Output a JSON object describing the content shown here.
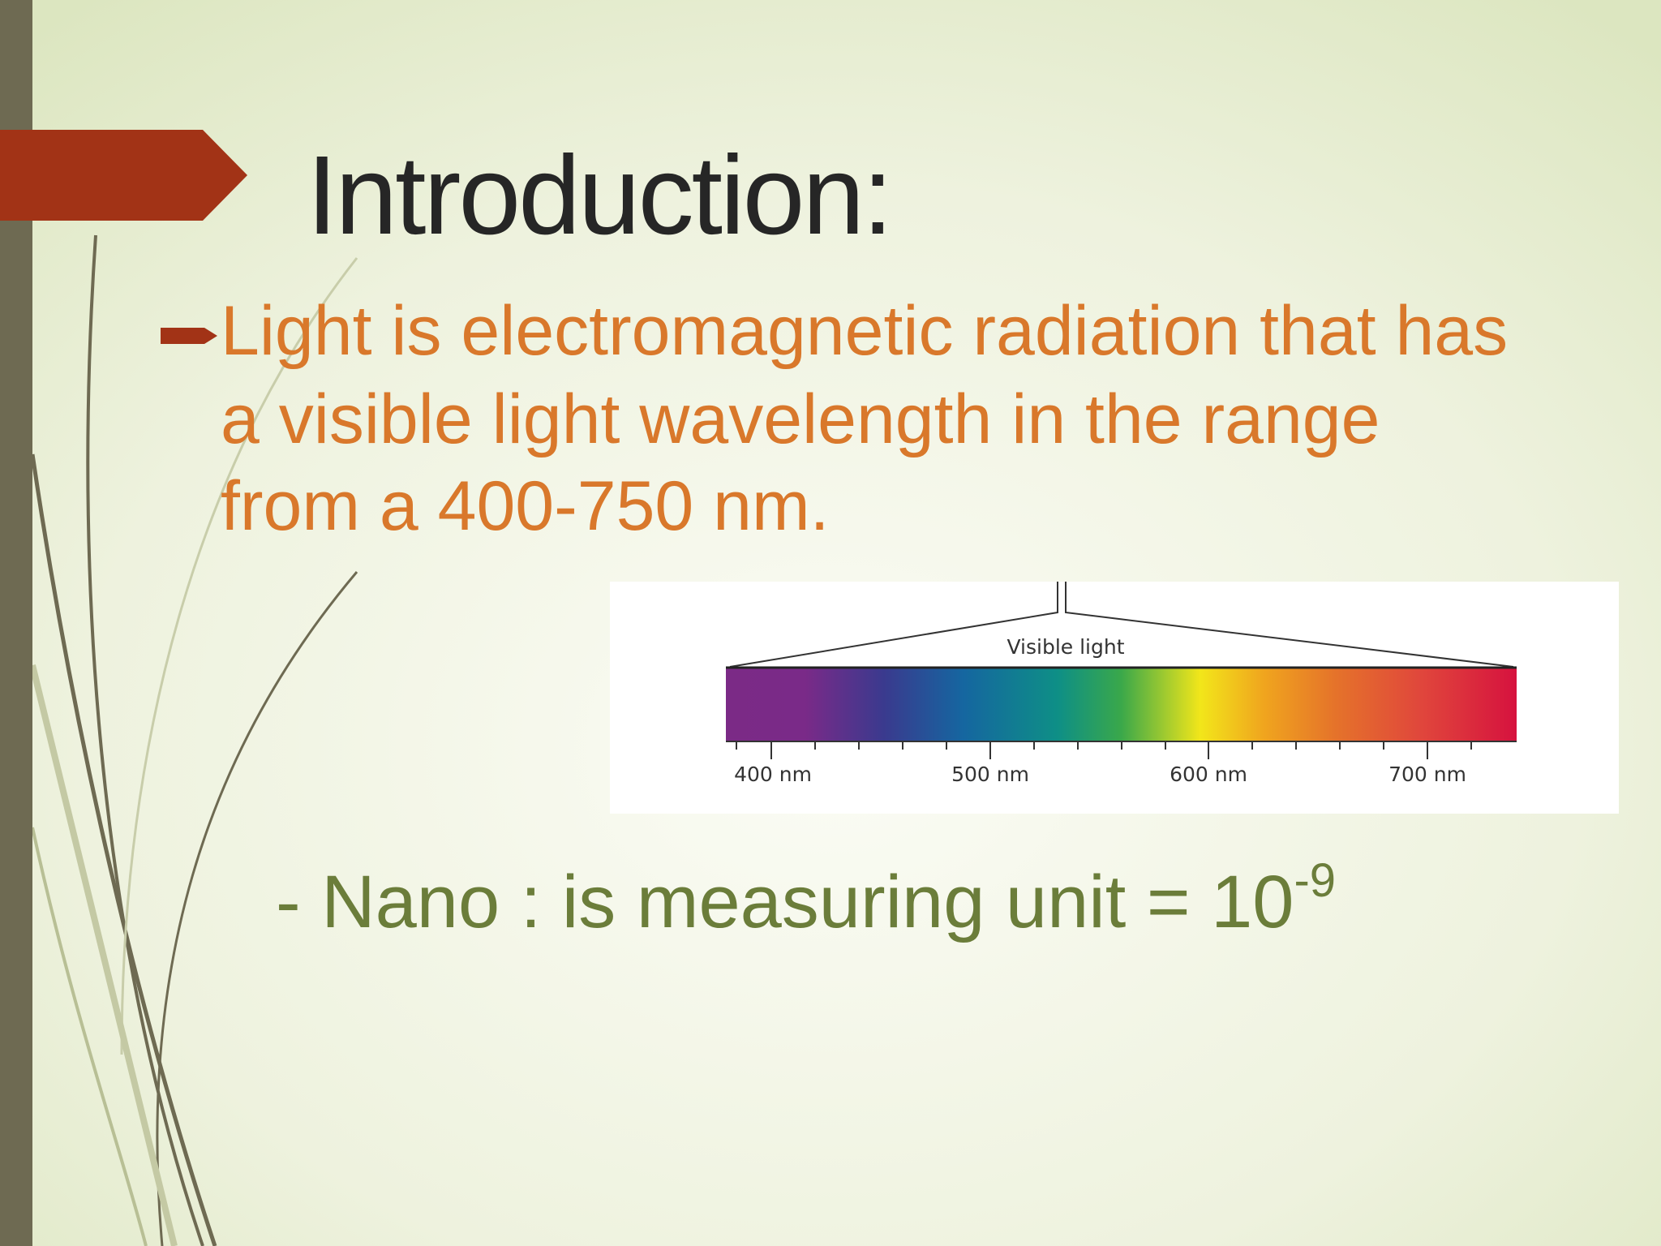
{
  "title": "Introduction:",
  "bullet": {
    "lines": [
      "Light is electromagnetic radiation that has",
      "a visible light wavelength in the range",
      "from a 400-750 nm."
    ]
  },
  "figure": {
    "label": "Visible light",
    "ticks": [
      "400 nm",
      "500 nm",
      "600 nm",
      "700 nm"
    ]
  },
  "note": {
    "text": "- Nano : is measuring unit = 10",
    "superscript": "-9"
  }
}
